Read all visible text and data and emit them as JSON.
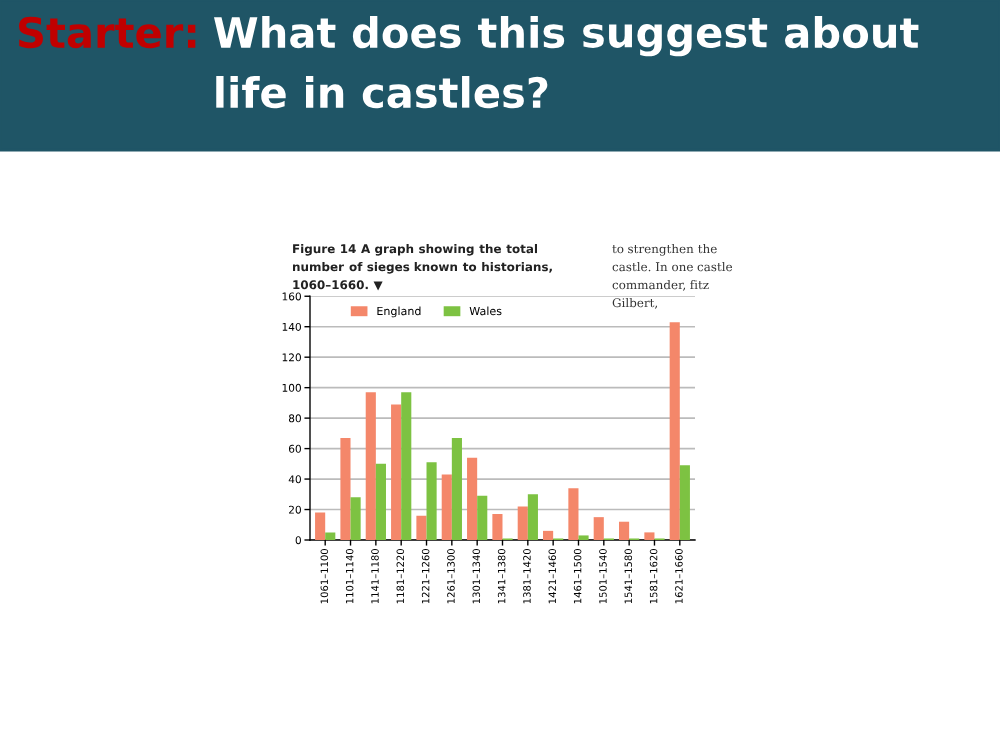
{
  "chart_data": {
    "type": "bar",
    "title": "Starter:",
    "subtitle": "What does this suggest about life in castles?",
    "annotations": [
      "Figure 14 A graph showing the total number of sieges known to historians, 1060–1660. ▼",
      "to strengthen the castle. In one castle commander, fitz Gilbert,"
    ],
    "categories": [
      "1061–1100",
      "1101–1140",
      "1141–1180",
      "1181–1220",
      "1221–1260",
      "1261–1300",
      "1301–1340",
      "1341–1380",
      "1381–1420",
      "1421–1460",
      "1461–1500",
      "1501–1540",
      "1541–1580",
      "1581–1620",
      "1621–1660"
    ],
    "series": [
      {
        "name": "England",
        "color": "#f4876a",
        "values": [
          18,
          67,
          97,
          89,
          16,
          43,
          54,
          17,
          22,
          6,
          34,
          15,
          12,
          5,
          143
        ]
      },
      {
        "name": "Wales",
        "color": "#7dc242",
        "values": [
          5,
          28,
          50,
          97,
          51,
          67,
          29,
          1,
          30,
          1,
          3,
          1,
          1,
          1,
          49
        ]
      }
    ],
    "ylim": [
      0,
      160
    ],
    "yticks": [
      0,
      20,
      40,
      60,
      80,
      100,
      120,
      140,
      160
    ],
    "grid": "y",
    "legend": "top left"
  }
}
